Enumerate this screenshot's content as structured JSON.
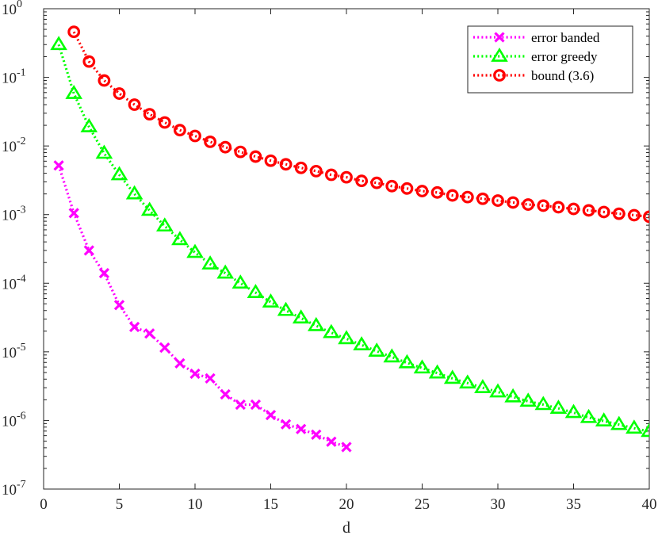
{
  "chart_data": {
    "type": "line",
    "title": "",
    "xlabel": "d",
    "ylabel": "",
    "xlim": [
      0,
      40
    ],
    "ylim": [
      1e-07,
      1
    ],
    "yscale": "log",
    "grid": false,
    "legend_position": "top-right",
    "x_ticks": [
      0,
      5,
      10,
      15,
      20,
      25,
      30,
      35,
      40
    ],
    "y_ticks": [
      {
        "base": "10",
        "exp": "0"
      },
      {
        "base": "10",
        "exp": "-1"
      },
      {
        "base": "10",
        "exp": "-2"
      },
      {
        "base": "10",
        "exp": "-3"
      },
      {
        "base": "10",
        "exp": "-4"
      },
      {
        "base": "10",
        "exp": "-5"
      },
      {
        "base": "10",
        "exp": "-6"
      },
      {
        "base": "10",
        "exp": "-7"
      }
    ],
    "series": [
      {
        "name": "error banded",
        "color": "#ff00ff",
        "marker": "x",
        "x": [
          1,
          2,
          3,
          4,
          5,
          6,
          7,
          8,
          9,
          10,
          11,
          12,
          13,
          14,
          15,
          16,
          17,
          18,
          19,
          20
        ],
        "y": [
          0.0052,
          0.00105,
          0.0003,
          0.00014,
          4.8e-05,
          2.3e-05,
          1.85e-05,
          1.15e-05,
          6.8e-06,
          4.8e-06,
          4.1e-06,
          2.4e-06,
          1.7e-06,
          1.7e-06,
          1.2e-06,
          8.8e-07,
          7.5e-07,
          6.2e-07,
          4.9e-07,
          4.1e-07
        ]
      },
      {
        "name": "error greedy",
        "color": "#00ff00",
        "marker": "triangle",
        "x": [
          1,
          2,
          3,
          4,
          5,
          6,
          7,
          8,
          9,
          10,
          11,
          12,
          13,
          14,
          15,
          16,
          17,
          18,
          19,
          20,
          21,
          22,
          23,
          24,
          25,
          26,
          27,
          28,
          29,
          30,
          31,
          32,
          33,
          34,
          35,
          36,
          37,
          38,
          39,
          40
        ],
        "y": [
          0.3,
          0.058,
          0.019,
          0.0078,
          0.0038,
          0.002,
          0.00115,
          0.00068,
          0.00043,
          0.00028,
          0.00019,
          0.00014,
          0.0001,
          7.3e-05,
          5.3e-05,
          4e-05,
          3.1e-05,
          2.4e-05,
          1.9e-05,
          1.55e-05,
          1.26e-05,
          1.02e-05,
          8.4e-06,
          6.9e-06,
          5.8e-06,
          4.9e-06,
          4.1e-06,
          3.5e-06,
          3e-06,
          2.6e-06,
          2.2e-06,
          1.9e-06,
          1.7e-06,
          1.5e-06,
          1.3e-06,
          1.1e-06,
          9.8e-07,
          8.7e-07,
          7.7e-07,
          6.9e-07
        ]
      },
      {
        "name": "bound (3.6)",
        "color": "#ff0000",
        "marker": "circle",
        "x": [
          2,
          3,
          4,
          5,
          6,
          7,
          8,
          9,
          10,
          11,
          12,
          13,
          14,
          15,
          16,
          17,
          18,
          19,
          20,
          21,
          22,
          23,
          24,
          25,
          26,
          27,
          28,
          29,
          30,
          31,
          32,
          33,
          34,
          35,
          36,
          37,
          38,
          39,
          40
        ],
        "y": [
          0.46,
          0.17,
          0.09,
          0.058,
          0.04,
          0.029,
          0.022,
          0.017,
          0.014,
          0.0115,
          0.0096,
          0.0082,
          0.007,
          0.0061,
          0.0054,
          0.0048,
          0.0043,
          0.0038,
          0.0035,
          0.0031,
          0.0029,
          0.0026,
          0.0024,
          0.0022,
          0.0021,
          0.0019,
          0.0018,
          0.0017,
          0.0016,
          0.0015,
          0.0014,
          0.00135,
          0.00128,
          0.00121,
          0.00115,
          0.00109,
          0.00103,
          0.00098,
          0.00093
        ]
      }
    ]
  }
}
